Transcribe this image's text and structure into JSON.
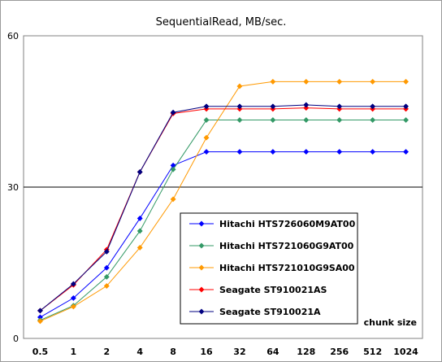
{
  "chart_data": {
    "type": "line",
    "title": "SequentialRead, MB/sec.",
    "xlabel": "chunk size",
    "ylabel": "",
    "categories": [
      "0.5",
      "1",
      "2",
      "4",
      "8",
      "16",
      "32",
      "64",
      "128",
      "256",
      "512",
      "1024"
    ],
    "ylim": [
      0,
      60
    ],
    "yticks": [
      "0",
      "30",
      "60"
    ],
    "grid": "horizontal line at 30",
    "legend_position": "bottom-right",
    "series": [
      {
        "name": "Hitachi HTS726060M9AT00",
        "color": "#0000ff",
        "values": [
          4.2,
          8.0,
          14.0,
          23.8,
          34.3,
          37.0,
          37.0,
          37.0,
          37.0,
          37.0,
          37.0,
          37.0
        ]
      },
      {
        "name": "Hitachi HTS721060G9AT00",
        "color": "#339966",
        "values": [
          3.6,
          6.5,
          12.2,
          21.3,
          33.5,
          43.3,
          43.3,
          43.3,
          43.3,
          43.3,
          43.3,
          43.3
        ]
      },
      {
        "name": "Hitachi HTS721010G9SA00",
        "color": "#ff9900",
        "values": [
          3.4,
          6.3,
          10.4,
          18.0,
          27.6,
          39.8,
          50.0,
          50.9,
          50.9,
          50.9,
          50.9,
          50.9
        ]
      },
      {
        "name": "Seagate ST910021AS",
        "color": "#ff0000",
        "values": [
          5.5,
          10.6,
          17.6,
          33.0,
          44.6,
          45.5,
          45.5,
          45.5,
          45.7,
          45.5,
          45.5,
          45.5
        ]
      },
      {
        "name": "Seagate ST910021A",
        "color": "#000080",
        "values": [
          5.5,
          10.8,
          17.2,
          33.0,
          44.8,
          46.0,
          46.0,
          46.0,
          46.3,
          46.0,
          46.0,
          46.0
        ]
      }
    ]
  }
}
